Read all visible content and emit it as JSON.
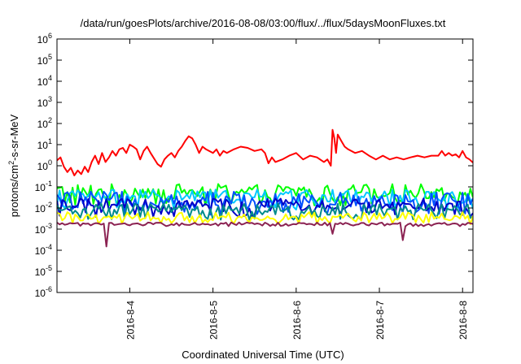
{
  "chart_data": {
    "type": "line",
    "title": "/data/run/goesPlots/archive/2016-08-08/03:00/flux/../flux/5daysMoonFluxes.txt",
    "xlabel": "Coordinated Universal Time (UTC)",
    "ylabel": {
      "base": "protons/cm",
      "sup": "2",
      "rest": "-s-sr-MeV"
    },
    "y_scale": "log",
    "ylim": [
      1e-06,
      1000000.0
    ],
    "y_ticks": [
      {
        "exp": -6,
        "base": "10",
        "sup": "-6"
      },
      {
        "exp": -5,
        "base": "10",
        "sup": "-5"
      },
      {
        "exp": -4,
        "base": "10",
        "sup": "-4"
      },
      {
        "exp": -3,
        "base": "10",
        "sup": "-3"
      },
      {
        "exp": -2,
        "base": "10",
        "sup": "-2"
      },
      {
        "exp": -1,
        "base": "10",
        "sup": "-1"
      },
      {
        "exp": 0,
        "base": "10",
        "sup": "0"
      },
      {
        "exp": 1,
        "base": "10",
        "sup": "1"
      },
      {
        "exp": 2,
        "base": "10",
        "sup": "2"
      },
      {
        "exp": 3,
        "base": "10",
        "sup": "3"
      },
      {
        "exp": 4,
        "base": "10",
        "sup": "4"
      },
      {
        "exp": 5,
        "base": "10",
        "sup": "5"
      },
      {
        "exp": 6,
        "base": "10",
        "sup": "6"
      }
    ],
    "xlim": [
      "2016-08-03T03:00",
      "2016-08-08T03:00"
    ],
    "x_ticks": [
      {
        "date": "2016-08-04T00:00",
        "label": "2016-8-4"
      },
      {
        "date": "2016-08-05T00:00",
        "label": "2016-8-5"
      },
      {
        "date": "2016-08-06T00:00",
        "label": "2016-8-6"
      },
      {
        "date": "2016-08-07T00:00",
        "label": "2016-8-7"
      },
      {
        "date": "2016-08-08T00:00",
        "label": "2016-8-8"
      }
    ],
    "grid": false,
    "series": [
      {
        "color": "#ff0000",
        "values": [
          [
            "2016-08-03T03:00",
            1.8
          ],
          [
            "2016-08-03T04:00",
            2.5
          ],
          [
            "2016-08-03T05:00",
            0.9
          ],
          [
            "2016-08-03T06:00",
            0.5
          ],
          [
            "2016-08-03T07:00",
            0.8
          ],
          [
            "2016-08-03T08:00",
            0.35
          ],
          [
            "2016-08-03T09:00",
            0.6
          ],
          [
            "2016-08-03T10:00",
            0.4
          ],
          [
            "2016-08-03T11:00",
            0.9
          ],
          [
            "2016-08-03T12:00",
            0.5
          ],
          [
            "2016-08-03T13:00",
            1.5
          ],
          [
            "2016-08-03T14:00",
            3.0
          ],
          [
            "2016-08-03T15:00",
            1.2
          ],
          [
            "2016-08-03T16:00",
            4.0
          ],
          [
            "2016-08-03T17:00",
            1.5
          ],
          [
            "2016-08-03T18:00",
            2.5
          ],
          [
            "2016-08-03T19:00",
            5.0
          ],
          [
            "2016-08-03T20:00",
            3.0
          ],
          [
            "2016-08-03T21:00",
            6.0
          ],
          [
            "2016-08-03T22:00",
            7.0
          ],
          [
            "2016-08-03T23:00",
            4.0
          ],
          [
            "2016-08-04T00:00",
            10.0
          ],
          [
            "2016-08-04T01:00",
            8.0
          ],
          [
            "2016-08-04T02:00",
            6.0
          ],
          [
            "2016-08-04T03:00",
            2.0
          ],
          [
            "2016-08-04T04:00",
            5.0
          ],
          [
            "2016-08-04T05:00",
            8.0
          ],
          [
            "2016-08-04T06:00",
            4.0
          ],
          [
            "2016-08-04T08:00",
            1.2
          ],
          [
            "2016-08-04T09:00",
            0.9
          ],
          [
            "2016-08-04T10:00",
            2.0
          ],
          [
            "2016-08-04T11:00",
            3.0
          ],
          [
            "2016-08-04T12:00",
            4.0
          ],
          [
            "2016-08-04T13:00",
            2.5
          ],
          [
            "2016-08-04T14:00",
            5.0
          ],
          [
            "2016-08-04T15:00",
            8.0
          ],
          [
            "2016-08-04T16:00",
            15.0
          ],
          [
            "2016-08-04T17:00",
            25.0
          ],
          [
            "2016-08-04T18:00",
            20.0
          ],
          [
            "2016-08-04T19:00",
            10.0
          ],
          [
            "2016-08-04T20:00",
            4.0
          ],
          [
            "2016-08-04T21:00",
            8.0
          ],
          [
            "2016-08-04T22:00",
            6.0
          ],
          [
            "2016-08-05T00:00",
            4.0
          ],
          [
            "2016-08-05T01:00",
            6.0
          ],
          [
            "2016-08-05T02:00",
            3.0
          ],
          [
            "2016-08-05T03:00",
            5.0
          ],
          [
            "2016-08-05T04:00",
            4.0
          ],
          [
            "2016-08-05T06:00",
            6.0
          ],
          [
            "2016-08-05T08:00",
            8.0
          ],
          [
            "2016-08-05T10:00",
            7.0
          ],
          [
            "2016-08-05T12:00",
            5.0
          ],
          [
            "2016-08-05T14:00",
            6.0
          ],
          [
            "2016-08-05T15:00",
            4.0
          ],
          [
            "2016-08-05T16:00",
            1.3
          ],
          [
            "2016-08-05T17:00",
            2.5
          ],
          [
            "2016-08-05T18:00",
            1.5
          ],
          [
            "2016-08-05T20:00",
            2.0
          ],
          [
            "2016-08-05T22:00",
            3.0
          ],
          [
            "2016-08-06T00:00",
            4.0
          ],
          [
            "2016-08-06T02:00",
            2.0
          ],
          [
            "2016-08-06T04:00",
            3.0
          ],
          [
            "2016-08-06T06:00",
            2.5
          ],
          [
            "2016-08-06T08:00",
            1.5
          ],
          [
            "2016-08-06T09:00",
            2.0
          ],
          [
            "2016-08-06T10:00",
            1.0
          ],
          [
            "2016-08-06T10:30",
            50.0
          ],
          [
            "2016-08-06T11:00",
            20.0
          ],
          [
            "2016-08-06T11:30",
            4.0
          ],
          [
            "2016-08-06T12:00",
            30.0
          ],
          [
            "2016-08-06T13:00",
            15.0
          ],
          [
            "2016-08-06T14:00",
            8.0
          ],
          [
            "2016-08-06T15:00",
            6.0
          ],
          [
            "2016-08-06T17:00",
            4.0
          ],
          [
            "2016-08-06T19:00",
            5.0
          ],
          [
            "2016-08-06T21:00",
            3.0
          ],
          [
            "2016-08-06T23:00",
            2.0
          ],
          [
            "2016-08-07T01:00",
            3.0
          ],
          [
            "2016-08-07T03:00",
            2.0
          ],
          [
            "2016-08-07T05:00",
            2.5
          ],
          [
            "2016-08-07T07:00",
            2.0
          ],
          [
            "2016-08-07T09:00",
            2.5
          ],
          [
            "2016-08-07T11:00",
            3.0
          ],
          [
            "2016-08-07T13:00",
            2.5
          ],
          [
            "2016-08-07T15:00",
            3.0
          ],
          [
            "2016-08-07T17:00",
            3.0
          ],
          [
            "2016-08-07T18:00",
            5.0
          ],
          [
            "2016-08-07T19:00",
            3.0
          ],
          [
            "2016-08-07T20:00",
            4.0
          ],
          [
            "2016-08-07T21:00",
            3.0
          ],
          [
            "2016-08-07T22:00",
            3.5
          ],
          [
            "2016-08-07T23:00",
            2.5
          ],
          [
            "2016-08-08T00:00",
            5.0
          ],
          [
            "2016-08-08T01:00",
            2.5
          ],
          [
            "2016-08-08T02:00",
            2.0
          ],
          [
            "2016-08-08T03:00",
            1.4
          ]
        ]
      },
      {
        "color": "#00ff00",
        "base": 0.06,
        "vary": 2.8,
        "dips": []
      },
      {
        "color": "#00c8ff",
        "base": 0.035,
        "vary": 2.6,
        "dips": []
      },
      {
        "color": "#0050ff",
        "base": 0.025,
        "vary": 3.0,
        "dips": []
      },
      {
        "color": "#0000c8",
        "base": 0.014,
        "vary": 2.4,
        "dips": []
      },
      {
        "color": "#008b8b",
        "base": 0.009,
        "vary": 2.2,
        "dips": []
      },
      {
        "color": "#ffff00",
        "base": 0.004,
        "vary": 1.8,
        "dips": []
      },
      {
        "color": "#8b2252",
        "base": 0.0018,
        "vary": 1.2,
        "dips": [
          [
            "2016-08-03T17:00",
            0.00015
          ],
          [
            "2016-08-06T10:30",
            0.0006
          ],
          [
            "2016-08-07T07:00",
            0.0003
          ]
        ]
      }
    ]
  }
}
